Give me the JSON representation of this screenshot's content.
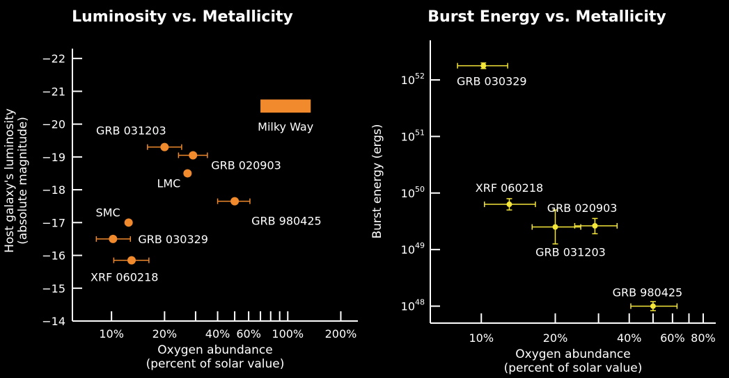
{
  "colors": {
    "background": "#000000",
    "left_marker": "#f08a2c",
    "right_marker": "#f5e63a",
    "axis": "#ffffff"
  },
  "chart_data": [
    {
      "type": "scatter",
      "title": "Luminosity vs. Metallicity",
      "xlabel_line1": "Oxygen abundance",
      "xlabel_line2": "(percent of solar value)",
      "ylabel_line1": "Host galaxy's luminosity",
      "ylabel_line2": "(absolute magnitude)",
      "x_scale": "log",
      "xlim": [
        6,
        250
      ],
      "ylim": [
        -14,
        -22.3
      ],
      "x_ticks": [
        10,
        20,
        40,
        60,
        100,
        200
      ],
      "x_tick_labels": [
        "10%",
        "20%",
        "40%",
        "60%",
        "100%",
        "200%"
      ],
      "x_minor_ticks": [
        30,
        50,
        70,
        80,
        90
      ],
      "y_ticks": [
        -14,
        -15,
        -16,
        -17,
        -18,
        -19,
        -20,
        -21,
        -22
      ],
      "y_tick_labels": [
        "−14",
        "−15",
        "−16",
        "−17",
        "−18",
        "−19",
        "−20",
        "−21",
        "−22"
      ],
      "points": [
        {
          "label": "GRB 031203",
          "x": 20,
          "y": -19.3,
          "xerr": [
            16,
            25
          ]
        },
        {
          "label": "GRB 020903",
          "x": 29,
          "y": -19.05,
          "xerr": [
            24,
            35
          ]
        },
        {
          "label": "LMC",
          "x": 27,
          "y": -18.5
        },
        {
          "label": "GRB 980425",
          "x": 50,
          "y": -17.65,
          "xerr": [
            40,
            61
          ]
        },
        {
          "label": "SMC",
          "x": 12.5,
          "y": -17.0
        },
        {
          "label": "GRB 030329",
          "x": 10.2,
          "y": -16.5,
          "xerr": [
            8.2,
            12.8
          ]
        },
        {
          "label": "XRF 060218",
          "x": 13,
          "y": -15.85,
          "xerr": [
            10.3,
            16.3
          ]
        }
      ],
      "band": {
        "label": "Milky Way",
        "x_range": [
          70,
          135
        ],
        "y_range": [
          -20.35,
          -20.75
        ]
      }
    },
    {
      "type": "scatter",
      "title": "Burst Energy vs. Metallicity",
      "xlabel_line1": "Oxygen abundance",
      "xlabel_line2": "(percent of solar value)",
      "ylabel": "Burst energy (ergs)",
      "x_scale": "log",
      "y_scale": "log",
      "xlim": [
        6.2,
        90
      ],
      "ylim": [
        47.7,
        52.7
      ],
      "x_ticks": [
        10,
        20,
        40,
        60,
        80
      ],
      "x_tick_labels": [
        "10%",
        "20%",
        "40%",
        "60%",
        "80%"
      ],
      "x_minor_ticks": [
        30,
        50,
        70
      ],
      "y_ticks": [
        48,
        49,
        50,
        51,
        52
      ],
      "y_tick_bases": [
        "10",
        "10",
        "10",
        "10",
        "10"
      ],
      "y_tick_exponents": [
        "48",
        "49",
        "50",
        "51",
        "52"
      ],
      "points": [
        {
          "label": "GRB 030329",
          "x": 10.2,
          "y_log10": 52.25,
          "xerr": [
            8.0,
            12.8
          ],
          "yerr_log10": [
            52.2,
            52.3
          ]
        },
        {
          "label": "XRF 060218",
          "x": 13,
          "y_log10": 49.8,
          "xerr": [
            10.3,
            16.6
          ],
          "yerr_log10": [
            49.7,
            49.9
          ]
        },
        {
          "label": "GRB 031203",
          "x": 20,
          "y_log10": 49.4,
          "xerr": [
            16.1,
            25.4
          ],
          "yerr_log10": [
            49.1,
            49.7
          ]
        },
        {
          "label": "GRB 020903",
          "x": 29,
          "y_log10": 49.42,
          "xerr": [
            24,
            35.7
          ],
          "yerr_log10": [
            49.28,
            49.55
          ]
        },
        {
          "label": "GRB 980425",
          "x": 50,
          "y_log10": 48.0,
          "xerr": [
            40.6,
            62.6
          ],
          "yerr_log10": [
            47.92,
            48.08
          ]
        }
      ]
    }
  ]
}
